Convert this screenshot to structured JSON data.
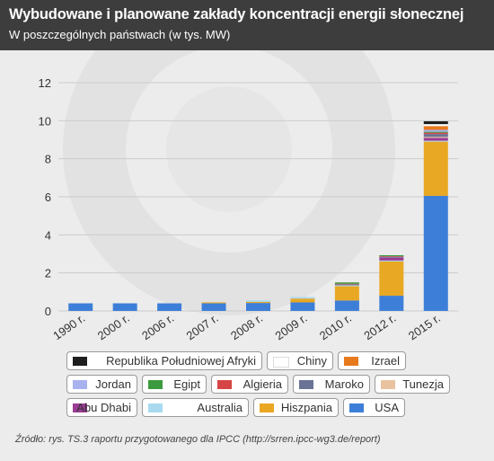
{
  "header": {
    "title": "Wybudowane i planowane zakłady koncentracji energii słonecznej",
    "subtitle": "W poszczególnych państwach (w tys. MW)"
  },
  "source": "Źródło: rys. TS.3 raportu przygotowanego dla IPCC (http://srren.ipcc-wg3.de/report)",
  "colors": {
    "background": "#ececec",
    "header": "#3d3d3d",
    "gridline": "#cccccc"
  },
  "chart_data": {
    "type": "bar",
    "stacked": true,
    "categories": [
      "1990 r.",
      "2000 r.",
      "2006 r.",
      "2007 r.",
      "2008 r.",
      "2009 r.",
      "2010 r.",
      "2012 r.",
      "2015 r."
    ],
    "ylim": [
      0,
      12
    ],
    "yticks": [
      0,
      2,
      4,
      6,
      8,
      10,
      12
    ],
    "grid": true,
    "legend_position": "bottom",
    "series": [
      {
        "name": "USA",
        "color": "#3d7fd8",
        "values": [
          0.4,
          0.4,
          0.4,
          0.4,
          0.42,
          0.45,
          0.55,
          0.8,
          6.05
        ]
      },
      {
        "name": "Hiszpania",
        "color": "#e9a823",
        "values": [
          0,
          0,
          0,
          0.05,
          0.06,
          0.2,
          0.75,
          1.8,
          2.85
        ]
      },
      {
        "name": "Australia",
        "color": "#a9daf0",
        "values": [
          0,
          0,
          0,
          0,
          0.08,
          0.08,
          0.05,
          0.05,
          0.05
        ]
      },
      {
        "name": "Abu Dhabi",
        "color": "#9b3c95",
        "values": [
          0,
          0,
          0,
          0,
          0,
          0,
          0,
          0.15,
          0.15
        ]
      },
      {
        "name": "Tunezja",
        "color": "#e9c3a0",
        "values": [
          0,
          0,
          0,
          0,
          0,
          0,
          0,
          0,
          0.05
        ]
      },
      {
        "name": "Maroko",
        "color": "#6a7396",
        "values": [
          0,
          0,
          0,
          0,
          0,
          0,
          0.05,
          0.05,
          0.15
        ]
      },
      {
        "name": "Algieria",
        "color": "#d64545",
        "values": [
          0,
          0,
          0,
          0,
          0,
          0,
          0.03,
          0.03,
          0.07
        ]
      },
      {
        "name": "Egipt",
        "color": "#3c9a3e",
        "values": [
          0,
          0,
          0,
          0,
          0,
          0,
          0.07,
          0.05,
          0.05
        ]
      },
      {
        "name": "Jordan",
        "color": "#a7b2ee",
        "values": [
          0,
          0,
          0,
          0,
          0,
          0,
          0,
          0,
          0.1
        ]
      },
      {
        "name": "Izrael",
        "color": "#e87a1e",
        "values": [
          0,
          0,
          0,
          0,
          0,
          0,
          0,
          0,
          0.2
        ]
      },
      {
        "name": "Chiny",
        "color": "#ffffff",
        "values": [
          0,
          0,
          0,
          0,
          0,
          0,
          0,
          0,
          0.1
        ]
      },
      {
        "name": "Republika Południowej Afryki",
        "color": "#1e1e1e",
        "values": [
          0,
          0,
          0,
          0,
          0,
          0,
          0,
          0,
          0.15
        ]
      }
    ]
  }
}
